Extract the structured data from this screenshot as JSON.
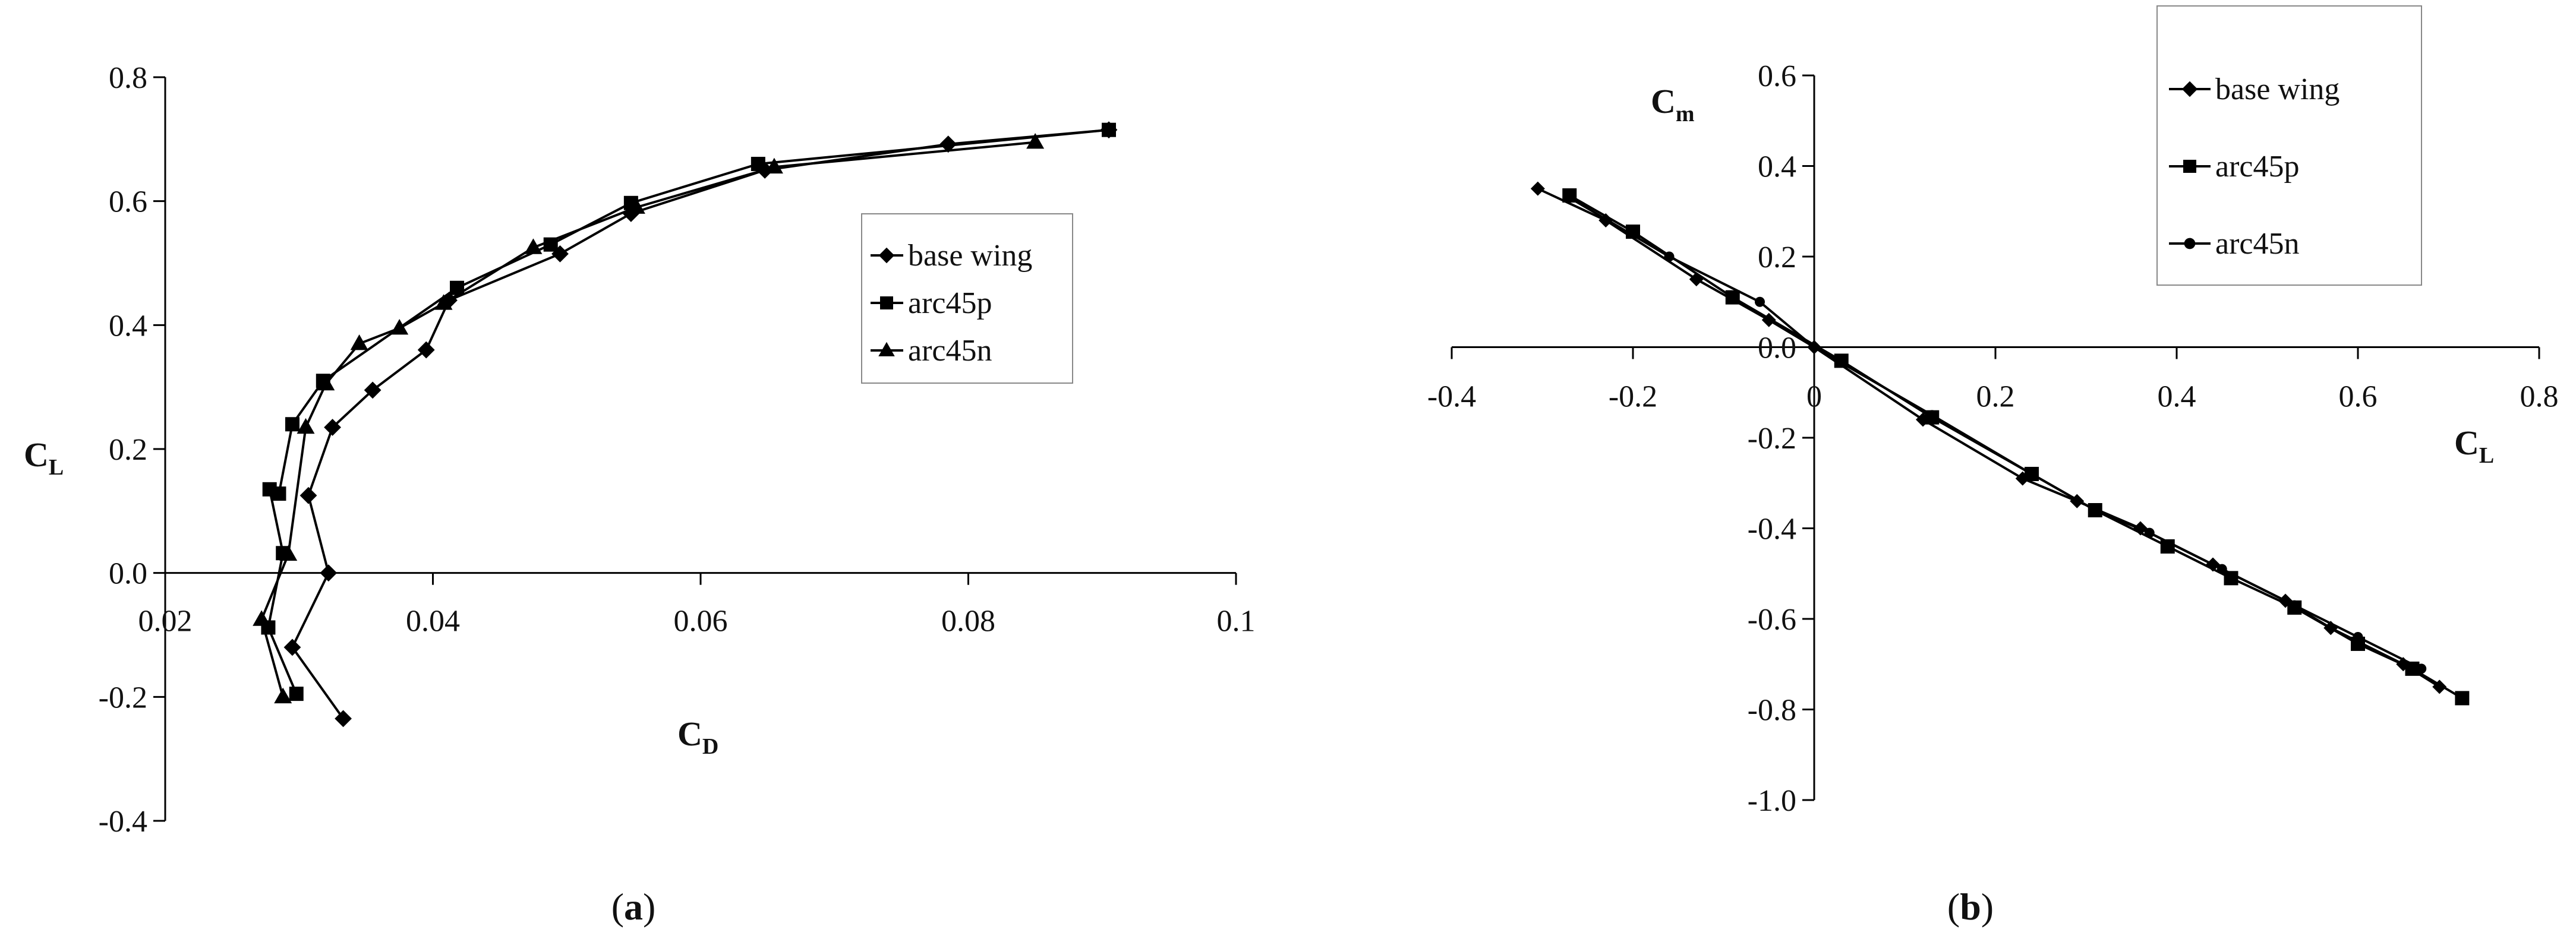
{
  "chart_data": [
    {
      "type": "line",
      "panel_label": "a",
      "xlabel": "C",
      "xlabel_sub": "D",
      "ylabel": "C",
      "ylabel_sub": "L",
      "xlim": [
        0.02,
        0.1
      ],
      "ylim": [
        -0.4,
        0.8
      ],
      "xticks": [
        "0.02",
        "0.04",
        "0.06",
        "0.08",
        "0.1"
      ],
      "yticks": [
        "-0.4",
        "-0.2",
        "0.0",
        "0.2",
        "0.4",
        "0.6",
        "0.8"
      ],
      "legend_position": "right-middle",
      "series": [
        {
          "name": "base wing",
          "marker": "diamond",
          "x": [
            0.0333,
            0.0295,
            0.0322,
            0.0307,
            0.0325,
            0.0355,
            0.0395,
            0.0412,
            0.0495,
            0.0548,
            0.0648,
            0.0785,
            0.0905
          ],
          "y": [
            -0.235,
            -0.12,
            0.0,
            0.125,
            0.235,
            0.295,
            0.36,
            0.44,
            0.515,
            0.58,
            0.65,
            0.692,
            0.715
          ]
        },
        {
          "name": "arc45p",
          "marker": "square",
          "x": [
            0.0298,
            0.0277,
            0.0288,
            0.0278,
            0.0285,
            0.0295,
            0.0318,
            0.0418,
            0.0488,
            0.0548,
            0.0643,
            0.0905
          ],
          "y": [
            -0.195,
            -0.088,
            0.032,
            0.135,
            0.128,
            0.24,
            0.31,
            0.46,
            0.53,
            0.597,
            0.66,
            0.715
          ]
        },
        {
          "name": "arc45n",
          "marker": "triangle",
          "x": [
            0.0288,
            0.0272,
            0.0292,
            0.0305,
            0.032,
            0.0345,
            0.0375,
            0.0408,
            0.0475,
            0.0552,
            0.0655,
            0.085
          ],
          "y": [
            -0.2,
            -0.075,
            0.03,
            0.235,
            0.305,
            0.37,
            0.395,
            0.435,
            0.525,
            0.59,
            0.655,
            0.695
          ]
        }
      ]
    },
    {
      "type": "line",
      "panel_label": "b",
      "xlabel": "C",
      "xlabel_sub": "L",
      "ylabel": "C",
      "ylabel_sub": "m",
      "xlim": [
        -0.4,
        0.8
      ],
      "ylim": [
        -1.0,
        0.6
      ],
      "xticks": [
        "-0.4",
        "-0.2",
        "0",
        "0.2",
        "0.4",
        "0.6",
        "0.8"
      ],
      "yticks": [
        "-1.0",
        "-0.8",
        "-0.6",
        "-0.4",
        "-0.2",
        "0.0",
        "0.2",
        "0.4",
        "0.6"
      ],
      "legend_position": "top-right",
      "series": [
        {
          "name": "base wing",
          "marker": "diamond",
          "x": [
            -0.305,
            -0.23,
            -0.13,
            -0.05,
            0.0,
            0.12,
            0.23,
            0.29,
            0.36,
            0.44,
            0.52,
            0.57,
            0.6,
            0.65,
            0.69
          ],
          "y": [
            0.35,
            0.28,
            0.15,
            0.06,
            0.0,
            -0.16,
            -0.29,
            -0.34,
            -0.4,
            -0.48,
            -0.56,
            -0.62,
            -0.65,
            -0.7,
            -0.75
          ]
        },
        {
          "name": "arc45p",
          "marker": "square",
          "x": [
            -0.27,
            -0.2,
            -0.09,
            0.03,
            0.13,
            0.24,
            0.31,
            0.39,
            0.46,
            0.53,
            0.6,
            0.66,
            0.715
          ],
          "y": [
            0.335,
            0.255,
            0.11,
            -0.03,
            -0.155,
            -0.28,
            -0.36,
            -0.44,
            -0.51,
            -0.575,
            -0.655,
            -0.71,
            -0.775
          ]
        },
        {
          "name": "arc45n",
          "marker": "circle",
          "x": [
            -0.27,
            -0.16,
            -0.06,
            0.0,
            0.13,
            0.24,
            0.31,
            0.37,
            0.45,
            0.53,
            0.6,
            0.67
          ],
          "y": [
            0.33,
            0.2,
            0.1,
            0.0,
            -0.15,
            -0.28,
            -0.36,
            -0.41,
            -0.49,
            -0.57,
            -0.64,
            -0.71
          ]
        }
      ]
    }
  ]
}
